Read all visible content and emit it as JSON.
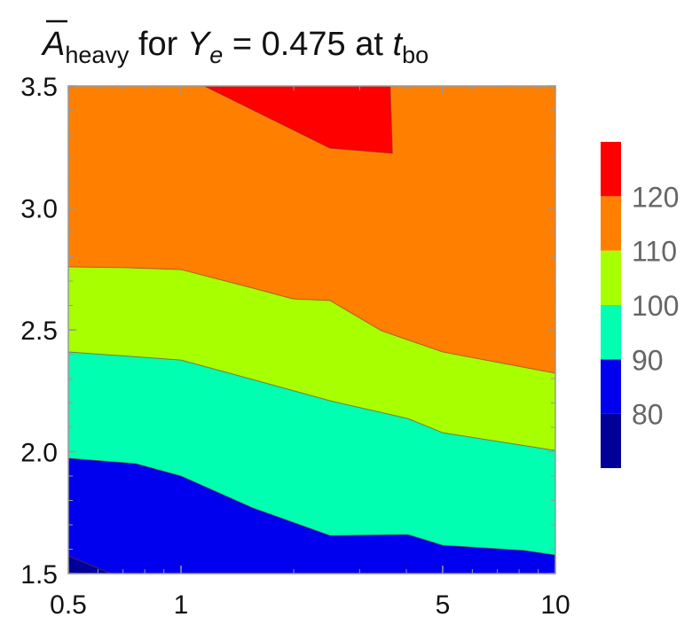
{
  "chart_data": {
    "type": "contour",
    "title": {
      "a": "A",
      "a_sub": "heavy",
      "mid": " for ",
      "y": "Y",
      "y_sub": "e",
      "rest": " = 0.475 at ",
      "t": "t",
      "t_sub": "bo"
    },
    "xlog": true,
    "xlim": [
      0.5,
      10
    ],
    "xticks": [
      0.5,
      1,
      5,
      10
    ],
    "xminorticks": [
      0.6,
      0.7,
      0.8,
      0.9,
      2,
      3,
      4,
      6,
      7,
      8,
      9
    ],
    "ylim": [
      1.5,
      3.5
    ],
    "yticks": [
      1.5,
      {
        "value": 2,
        "label": "2.0"
      },
      2.5,
      {
        "value": 3,
        "label": "3.0"
      },
      3.5
    ],
    "yminorticks": [
      1.6,
      1.7,
      1.8,
      1.9,
      2.1,
      2.2,
      2.3,
      2.4,
      2.6,
      2.7,
      2.8,
      2.9,
      3.1,
      3.2,
      3.3,
      3.4
    ],
    "colors": [
      "#000099",
      "#0000ee",
      "#00ffb0",
      "#a8ff00",
      "#ff7f00",
      "#ff0000"
    ],
    "colorbar": {
      "lim": [
        70,
        130
      ],
      "ticks": [
        80,
        90,
        100,
        110,
        120
      ]
    },
    "contours": [
      {
        "x": [
          0.5,
          0.65
        ],
        "y": [
          1.573,
          1.5
        ]
      },
      {
        "x": [
          0.5,
          0.757,
          1.0,
          1.556,
          2.5,
          4.04,
          5,
          8.22,
          10
        ],
        "y": [
          1.973,
          1.951,
          1.9,
          1.769,
          1.656,
          1.66,
          1.616,
          1.595,
          1.576
        ]
      },
      {
        "x": [
          0.5,
          0.736,
          1.0,
          1.556,
          2.5,
          4.04,
          5,
          10
        ],
        "y": [
          2.409,
          2.391,
          2.376,
          2.296,
          2.209,
          2.136,
          2.078,
          2.005
        ]
      },
      {
        "x": [
          0.5,
          0.705,
          1.0,
          1.556,
          1.99,
          2.5,
          3.43,
          5,
          10
        ],
        "y": [
          2.758,
          2.755,
          2.747,
          2.671,
          2.627,
          2.62,
          2.496,
          2.409,
          2.322
        ]
      },
      {
        "x": [
          1.153,
          2.5,
          3.67,
          3.62
        ],
        "y": [
          3.5,
          3.245,
          3.224,
          3.5
        ]
      }
    ]
  }
}
